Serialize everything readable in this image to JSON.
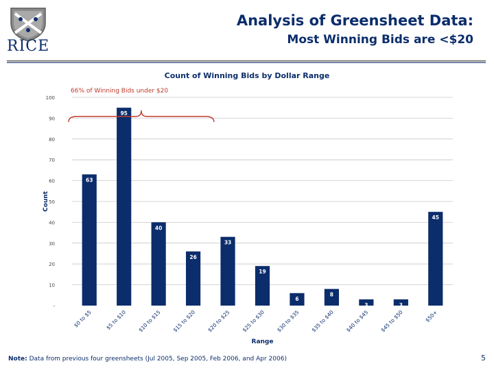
{
  "header": {
    "logo_text": "RICE",
    "title": "Analysis of Greensheet Data:",
    "subtitle": "Most Winning Bids are <$20"
  },
  "chart_data": {
    "type": "bar",
    "title": "Count of Winning Bids by Dollar Range",
    "xlabel": "Range",
    "ylabel": "Count",
    "categories": [
      "$0 to $5",
      "$5 to $10",
      "$10 to $15",
      "$15 to $20",
      "$20 to $25",
      "$25 to $30",
      "$30 to $35",
      "$35 to $40",
      "$40 to $45",
      "$45 to $50",
      "$50+"
    ],
    "values": [
      63,
      95,
      40,
      26,
      33,
      19,
      6,
      8,
      3,
      3,
      45
    ],
    "ylim": [
      0,
      100
    ],
    "yticks": [
      0,
      10,
      20,
      30,
      40,
      50,
      60,
      70,
      80,
      90,
      100
    ],
    "ytick_labels": [
      "-",
      "10",
      "20",
      "30",
      "40",
      "50",
      "60",
      "70",
      "80",
      "90",
      "100"
    ],
    "grid": true,
    "bar_color": "#0b2d6b",
    "annotation": {
      "text": "66% of Winning Bids under $20",
      "color": "#c0392b",
      "bracket_from": "$0 to $5",
      "bracket_to": "$15 to $20"
    }
  },
  "footer": {
    "note_label": "Note:",
    "note_text": "Data from previous four greensheets (Jul 2005, Sep 2005, Feb 2006, and Apr 2006)",
    "page_number": "5"
  }
}
